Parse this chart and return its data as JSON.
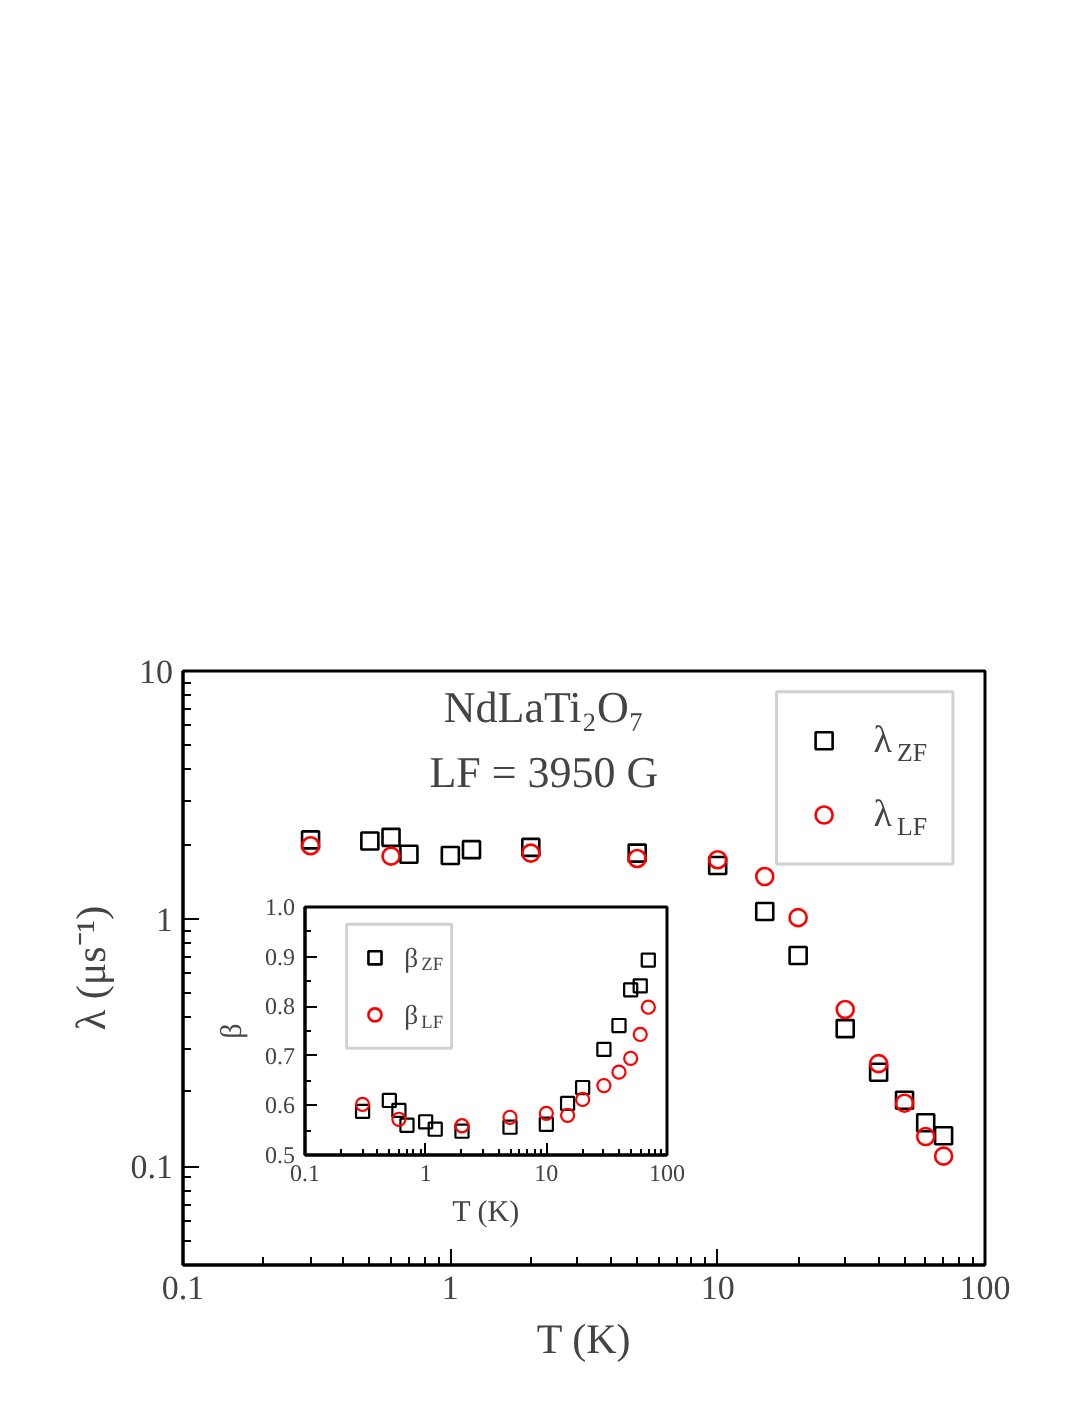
{
  "chart_data": [
    {
      "type": "scatter",
      "xlabel": "T (K)",
      "ylabel": "λ (μs⁻¹)",
      "log": "xy",
      "xlim": [
        0.1,
        100
      ],
      "ylim": [
        0.04,
        10
      ],
      "xticks": [
        0.1,
        1,
        10,
        100
      ],
      "yticks": [
        0.1,
        1,
        10
      ],
      "grid": false,
      "legend": "top right",
      "annotations": [
        "NdLaTi₂O₇",
        "LF = 3950 G"
      ],
      "series": [
        {
          "name": "λ$_{ZF}$",
          "color": "#000000",
          "marker": "square",
          "x": [
            0.3,
            0.5,
            0.6,
            0.7,
            1,
            1.2,
            2,
            5,
            10,
            15,
            20,
            30,
            40,
            50,
            60,
            70
          ],
          "values": [
            2.08,
            2.06,
            2.13,
            1.82,
            1.8,
            1.9,
            1.94,
            1.84,
            1.64,
            1.07,
            0.71,
            0.36,
            0.24,
            0.185,
            0.15,
            0.133
          ]
        },
        {
          "name": "λ$_{LF}$",
          "color": "#ff0000",
          "marker": "circle",
          "x": [
            0.3,
            0.6,
            2,
            5,
            10,
            15,
            20,
            30,
            40,
            50,
            60,
            70
          ],
          "values": [
            1.97,
            1.79,
            1.84,
            1.75,
            1.73,
            1.48,
            1.01,
            0.43,
            0.26,
            0.18,
            0.132,
            0.11
          ]
        }
      ]
    },
    {
      "type": "scatter",
      "xlabel": "T (K)",
      "ylabel": "β",
      "log": "x",
      "xlim": [
        0.1,
        100
      ],
      "ylim": [
        0.5,
        1.0
      ],
      "xticks": [
        0.1,
        1,
        10,
        100
      ],
      "yticks": [
        0.5,
        0.6,
        0.7,
        0.8,
        0.9,
        {
          "value": 1.0,
          "label": "1.0"
        }
      ],
      "grid": false,
      "legend": "top left",
      "series": [
        {
          "name": "β$_{ZF}$",
          "color": "#000000",
          "marker": "square",
          "x": [
            0.3,
            0.5,
            0.6,
            0.7,
            1,
            1.2,
            2,
            5,
            10,
            15,
            20,
            30,
            40,
            50,
            60,
            70
          ],
          "values": [
            0.588,
            0.61,
            0.59,
            0.56,
            0.567,
            0.552,
            0.548,
            0.556,
            0.562,
            0.604,
            0.636,
            0.713,
            0.761,
            0.833,
            0.841,
            0.893
          ]
        },
        {
          "name": "β$_{LF}$",
          "color": "#ff0000",
          "marker": "circle",
          "x": [
            0.3,
            0.6,
            2,
            5,
            10,
            15,
            20,
            30,
            40,
            50,
            60,
            70
          ],
          "values": [
            0.602,
            0.572,
            0.559,
            0.576,
            0.584,
            0.58,
            0.612,
            0.64,
            0.667,
            0.695,
            0.743,
            0.798
          ]
        }
      ]
    }
  ]
}
